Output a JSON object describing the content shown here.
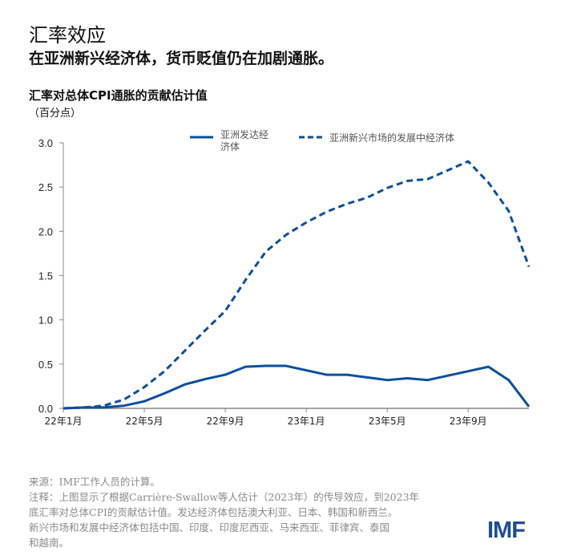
{
  "header": {
    "title": "汇率效应",
    "subtitle": "在亚洲新兴经济体，货币贬值仍在加剧通胀。"
  },
  "chart_data": {
    "type": "line",
    "title": "汇率对总体CPI通胀的贡献估计值",
    "ylabel": "（百分点）",
    "ylim": [
      0,
      3.0
    ],
    "yticks": [
      "0.0",
      "0.5",
      "1.0",
      "1.5",
      "2.0",
      "2.5",
      "3.0"
    ],
    "x": [
      "22年1月",
      "22年2月",
      "22年3月",
      "22年4月",
      "22年5月",
      "22年6月",
      "22年7月",
      "22年8月",
      "22年9月",
      "22年10月",
      "22年11月",
      "22年12月",
      "23年1月",
      "23年2月",
      "23年3月",
      "23年4月",
      "23年5月",
      "23年6月",
      "23年7月",
      "23年8月",
      "23年9月",
      "23年10月",
      "23年11月",
      "23年12月"
    ],
    "xticks": [
      "22年1月",
      "22年5月",
      "22年9月",
      "23年1月",
      "23年5月",
      "23年9月"
    ],
    "grid": false,
    "legend": "top",
    "series": [
      {
        "name": "亚洲发达经济体",
        "style": "solid",
        "color": "#0b4f9f",
        "values": [
          0,
          0.01,
          0.01,
          0.03,
          0.08,
          0.17,
          0.27,
          0.33,
          0.38,
          0.47,
          0.48,
          0.48,
          0.43,
          0.38,
          0.38,
          0.35,
          0.32,
          0.34,
          0.32,
          0.37,
          0.42,
          0.47,
          0.32,
          0.02
        ]
      },
      {
        "name": "亚洲新兴市场的发展中经济体",
        "style": "dashed",
        "color": "#0b4f9f",
        "values": [
          0,
          0.01,
          0.03,
          0.1,
          0.24,
          0.42,
          0.65,
          0.88,
          1.1,
          1.45,
          1.77,
          1.96,
          2.1,
          2.22,
          2.31,
          2.38,
          2.49,
          2.57,
          2.59,
          2.69,
          2.79,
          2.55,
          2.23,
          1.6
        ]
      }
    ],
    "legend_labels": [
      "亚洲发达经",
      "济体",
      "亚洲新兴市场的发展中经济体"
    ]
  },
  "footer": {
    "source": "来源：IMF工作人员的计算。",
    "note_lines": [
      "注释：上图显示了根据Carrière-Swallow等人估计（2023年）的传导效应，到2023年",
      "底汇率对总体CPI的贡献估计值。发达经济体包括澳大利亚、日本、韩国和新西兰。",
      "新兴市场和发展中经济体包括中国、印度、印度尼西亚、马来西亚、菲律宾、泰国",
      "和越南。"
    ],
    "logo": "IMF"
  }
}
